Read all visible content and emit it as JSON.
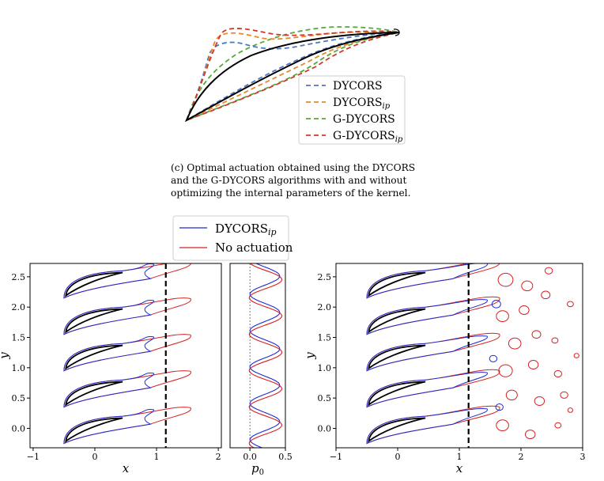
{
  "caption": {
    "lines": [
      "(c) Optimal actuation obtained using the DYCORS",
      "and the G-DYCORS algorithms with and without",
      "optimizing the internal parameters of the kernel."
    ]
  },
  "top_figure": {
    "legend": [
      {
        "name": "DYCORS",
        "sub": "",
        "color": "#4a78c4"
      },
      {
        "name": "DYCORS",
        "sub": "ip",
        "color": "#e8882a"
      },
      {
        "name": "G-DYCORS",
        "sub": "",
        "color": "#55a83a"
      },
      {
        "name": "G-DYCORS",
        "sub": "ip",
        "color": "#cc3a2e"
      }
    ]
  },
  "bottom_legend": [
    {
      "name": "DYCORS",
      "sub": "ip",
      "color": "#1f2bd1"
    },
    {
      "name": "No actuation",
      "sub": "",
      "color": "#d62020"
    }
  ],
  "chart_data": [
    {
      "type": "line",
      "xlabel": "x",
      "ylabel": "y",
      "xlim": [
        -1.05,
        2.05
      ],
      "ylim": [
        -0.32,
        2.72
      ],
      "xticks": [
        "−1",
        "0",
        "1",
        "2"
      ],
      "yticks": [
        "0.0",
        "0.5",
        "1.0",
        "1.5",
        "2.0",
        "2.5"
      ],
      "vline_x": 1.15
    },
    {
      "type": "line",
      "xlabel": "p0",
      "xlim": [
        -0.28,
        0.5
      ],
      "ylim": [
        -0.32,
        2.72
      ],
      "xticks": [
        "0.0",
        "0.5"
      ],
      "series": [
        {
          "name": "DYCORS_ip",
          "color": "#1f2bd1"
        },
        {
          "name": "No actuation",
          "color": "#d62020"
        }
      ]
    },
    {
      "type": "line",
      "xlabel": "x",
      "ylabel": "y",
      "xlim": [
        -1.0,
        3.0
      ],
      "ylim": [
        -0.32,
        2.72
      ],
      "xticks": [
        "−1",
        "0",
        "1",
        "2",
        "3"
      ],
      "yticks": [
        "0.0",
        "0.5",
        "1.0",
        "1.5",
        "2.0",
        "2.5"
      ],
      "vline_x": 1.15
    }
  ]
}
